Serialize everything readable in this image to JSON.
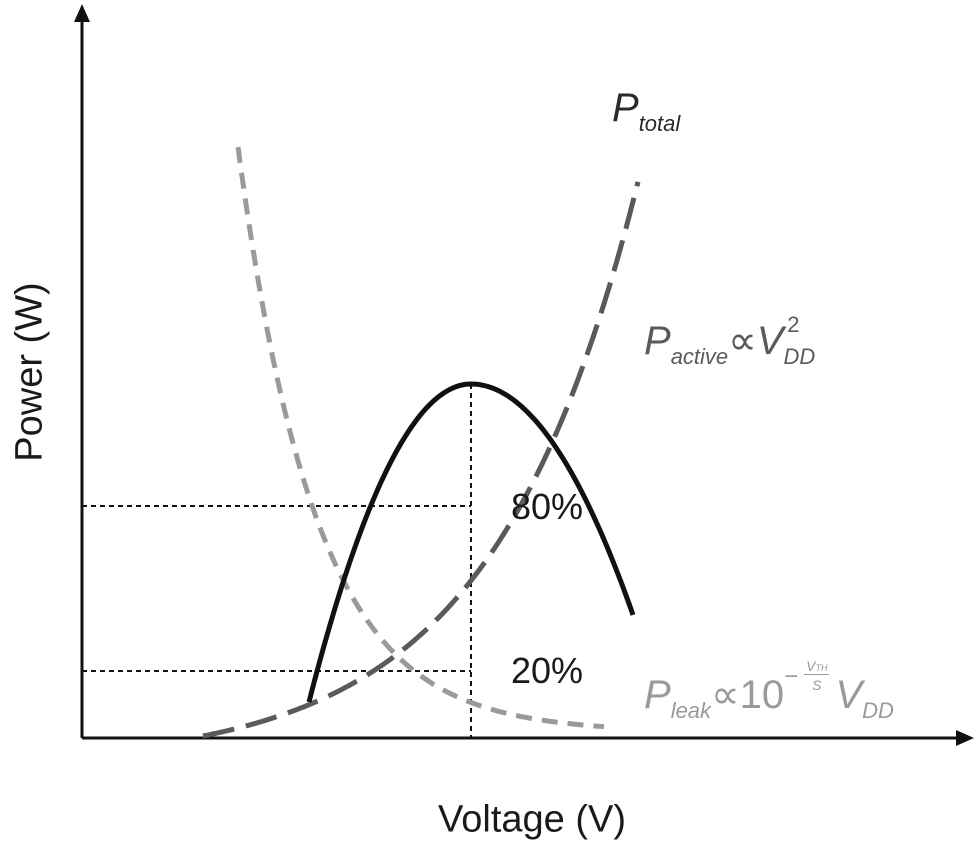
{
  "axes": {
    "y_title": "Power (W)",
    "x_title": "Voltage (V)"
  },
  "percent_labels": {
    "active_share": "80%",
    "leak_share": "20%"
  },
  "curves": {
    "total": {
      "symbol": "P",
      "subscript": "total",
      "color": "#111111"
    },
    "active": {
      "symbol": "P",
      "subscript": "active",
      "proportional": "∝",
      "variable": "V",
      "var_subscript": "DD",
      "exponent": "2",
      "color": "#5a5a5a"
    },
    "leak": {
      "symbol": "P",
      "subscript": "leak",
      "proportional": "∝",
      "base": "10",
      "exp_sign": "−",
      "exp_num": "V",
      "exp_num_sub": "TH",
      "exp_den": "S",
      "variable": "V",
      "var_subscript": "DD",
      "color": "#9a9a9a"
    }
  }
}
